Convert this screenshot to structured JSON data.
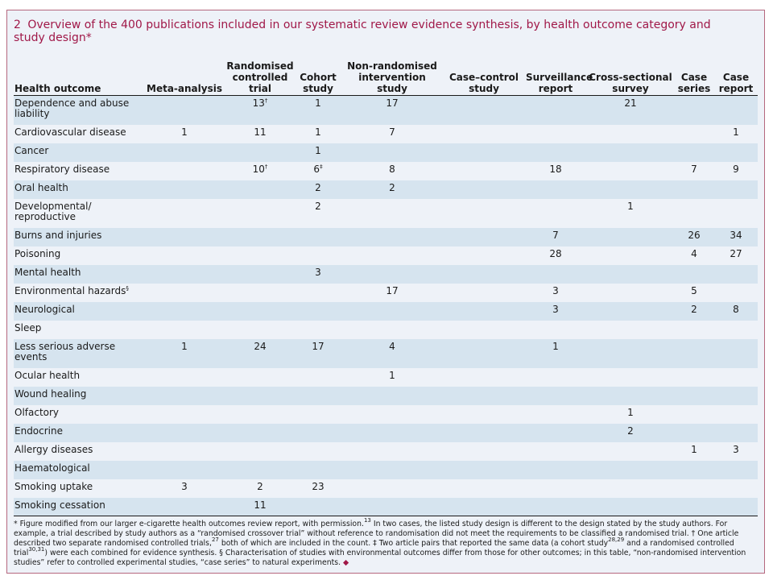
{
  "title": {
    "number": "2",
    "text": "Overview of the 400 publications included in our systematic review evidence synthesis, by health outcome category and study design*"
  },
  "table": {
    "headers": [
      "Health outcome",
      "Meta-analysis",
      "Randomised controlled trial",
      "Cohort study",
      "Non-randomised intervention study",
      "Case–control study",
      "Surveillance report",
      "Cross-sectional survey",
      "Case series",
      "Case report"
    ],
    "rows": [
      {
        "outcome": "Dependence and abuse liability",
        "cells": [
          "",
          "13",
          "1",
          "17",
          "",
          "",
          "21",
          "",
          ""
        ],
        "marks": [
          "",
          "†",
          "",
          "",
          "",
          "",
          "",
          "",
          ""
        ],
        "tall": true
      },
      {
        "outcome": "Cardiovascular disease",
        "cells": [
          "1",
          "11",
          "1",
          "7",
          "",
          "",
          "",
          "",
          "1"
        ],
        "marks": [
          "",
          "",
          "",
          "",
          "",
          "",
          "",
          "",
          ""
        ],
        "tall": false
      },
      {
        "outcome": "Cancer",
        "cells": [
          "",
          "",
          "1",
          "",
          "",
          "",
          "",
          "",
          ""
        ],
        "marks": [
          "",
          "",
          "",
          "",
          "",
          "",
          "",
          "",
          ""
        ],
        "tall": false
      },
      {
        "outcome": "Respiratory disease",
        "cells": [
          "",
          "10",
          "6",
          "8",
          "",
          "18",
          "",
          "7",
          "9"
        ],
        "marks": [
          "",
          "†",
          "‡",
          "",
          "",
          "",
          "",
          "",
          ""
        ],
        "tall": false
      },
      {
        "outcome": "Oral health",
        "cells": [
          "",
          "",
          "2",
          "2",
          "",
          "",
          "",
          "",
          ""
        ],
        "marks": [
          "",
          "",
          "",
          "",
          "",
          "",
          "",
          "",
          ""
        ],
        "tall": false
      },
      {
        "outcome": "Developmental/ reproductive",
        "cells": [
          "",
          "",
          "2",
          "",
          "",
          "",
          "1",
          "",
          ""
        ],
        "marks": [
          "",
          "",
          "",
          "",
          "",
          "",
          "",
          "",
          ""
        ],
        "tall": true
      },
      {
        "outcome": "Burns and injuries",
        "cells": [
          "",
          "",
          "",
          "",
          "",
          "7",
          "",
          "26",
          "34"
        ],
        "marks": [
          "",
          "",
          "",
          "",
          "",
          "",
          "",
          "",
          ""
        ],
        "tall": false
      },
      {
        "outcome": "Poisoning",
        "cells": [
          "",
          "",
          "",
          "",
          "",
          "28",
          "",
          "4",
          "27"
        ],
        "marks": [
          "",
          "",
          "",
          "",
          "",
          "",
          "",
          "",
          ""
        ],
        "tall": false
      },
      {
        "outcome": "Mental health",
        "cells": [
          "",
          "",
          "3",
          "",
          "",
          "",
          "",
          "",
          ""
        ],
        "marks": [
          "",
          "",
          "",
          "",
          "",
          "",
          "",
          "",
          ""
        ],
        "tall": false
      },
      {
        "outcome": "Environmental hazards",
        "outcome_mark": "§",
        "cells": [
          "",
          "",
          "",
          "17",
          "",
          "3",
          "",
          "5",
          ""
        ],
        "marks": [
          "",
          "",
          "",
          "",
          "",
          "",
          "",
          "",
          ""
        ],
        "tall": false
      },
      {
        "outcome": "Neurological",
        "cells": [
          "",
          "",
          "",
          "",
          "",
          "3",
          "",
          "2",
          "8"
        ],
        "marks": [
          "",
          "",
          "",
          "",
          "",
          "",
          "",
          "",
          ""
        ],
        "tall": false
      },
      {
        "outcome": "Sleep",
        "cells": [
          "",
          "",
          "",
          "",
          "",
          "",
          "",
          "",
          ""
        ],
        "marks": [
          "",
          "",
          "",
          "",
          "",
          "",
          "",
          "",
          ""
        ],
        "tall": false
      },
      {
        "outcome": "Less serious adverse events",
        "cells": [
          "1",
          "24",
          "17",
          "4",
          "",
          "1",
          "",
          "",
          ""
        ],
        "marks": [
          "",
          "",
          "",
          "",
          "",
          "",
          "",
          "",
          ""
        ],
        "tall": true
      },
      {
        "outcome": "Ocular health",
        "cells": [
          "",
          "",
          "",
          "1",
          "",
          "",
          "",
          "",
          ""
        ],
        "marks": [
          "",
          "",
          "",
          "",
          "",
          "",
          "",
          "",
          ""
        ],
        "tall": false
      },
      {
        "outcome": "Wound healing",
        "cells": [
          "",
          "",
          "",
          "",
          "",
          "",
          "",
          "",
          ""
        ],
        "marks": [
          "",
          "",
          "",
          "",
          "",
          "",
          "",
          "",
          ""
        ],
        "tall": false
      },
      {
        "outcome": "Olfactory",
        "cells": [
          "",
          "",
          "",
          "",
          "",
          "",
          "1",
          "",
          ""
        ],
        "marks": [
          "",
          "",
          "",
          "",
          "",
          "",
          "",
          "",
          ""
        ],
        "tall": false
      },
      {
        "outcome": "Endocrine",
        "cells": [
          "",
          "",
          "",
          "",
          "",
          "",
          "2",
          "",
          ""
        ],
        "marks": [
          "",
          "",
          "",
          "",
          "",
          "",
          "",
          "",
          ""
        ],
        "tall": false
      },
      {
        "outcome": "Allergy diseases",
        "cells": [
          "",
          "",
          "",
          "",
          "",
          "",
          "",
          "1",
          "3"
        ],
        "marks": [
          "",
          "",
          "",
          "",
          "",
          "",
          "",
          "",
          ""
        ],
        "tall": false
      },
      {
        "outcome": "Haematological",
        "cells": [
          "",
          "",
          "",
          "",
          "",
          "",
          "",
          "",
          ""
        ],
        "marks": [
          "",
          "",
          "",
          "",
          "",
          "",
          "",
          "",
          ""
        ],
        "tall": false
      },
      {
        "outcome": "Smoking uptake",
        "cells": [
          "3",
          "2",
          "23",
          "",
          "",
          "",
          "",
          "",
          ""
        ],
        "marks": [
          "",
          "",
          "",
          "",
          "",
          "",
          "",
          "",
          ""
        ],
        "tall": false
      },
      {
        "outcome": "Smoking cessation",
        "cells": [
          "",
          "11",
          "",
          "",
          "",
          "",
          "",
          "",
          ""
        ],
        "marks": [
          "",
          "",
          "",
          "",
          "",
          "",
          "",
          "",
          ""
        ],
        "tall": false
      }
    ]
  },
  "footnote": {
    "p1": "* Figure modified from our larger e-cigarette health outcomes review report, with permission.",
    "ref1": "13",
    "p2": " In two cases, the listed study design is different to the design stated by the study authors. For example, a trial described by study authors as a “randomised crossover trial” without reference to randomisation did not meet the requirements to be classified a randomised trial. † One article described two separate randomised controlled trials,",
    "ref2": "27",
    "p3": " both of which are included in the count. ‡ Two article pairs that reported the same data (a cohort study",
    "ref3": "28,29",
    "p4": " and a randomised controlled trial",
    "ref4": "30,31",
    "p5": ") were each combined for evidence synthesis. § Characterisation of studies with environmental outcomes differ from those for other outcomes; in this table, “non-randomised intervention studies” refer to controlled experimental studies, “case series” to natural experiments.",
    "end_mark": "◆"
  }
}
